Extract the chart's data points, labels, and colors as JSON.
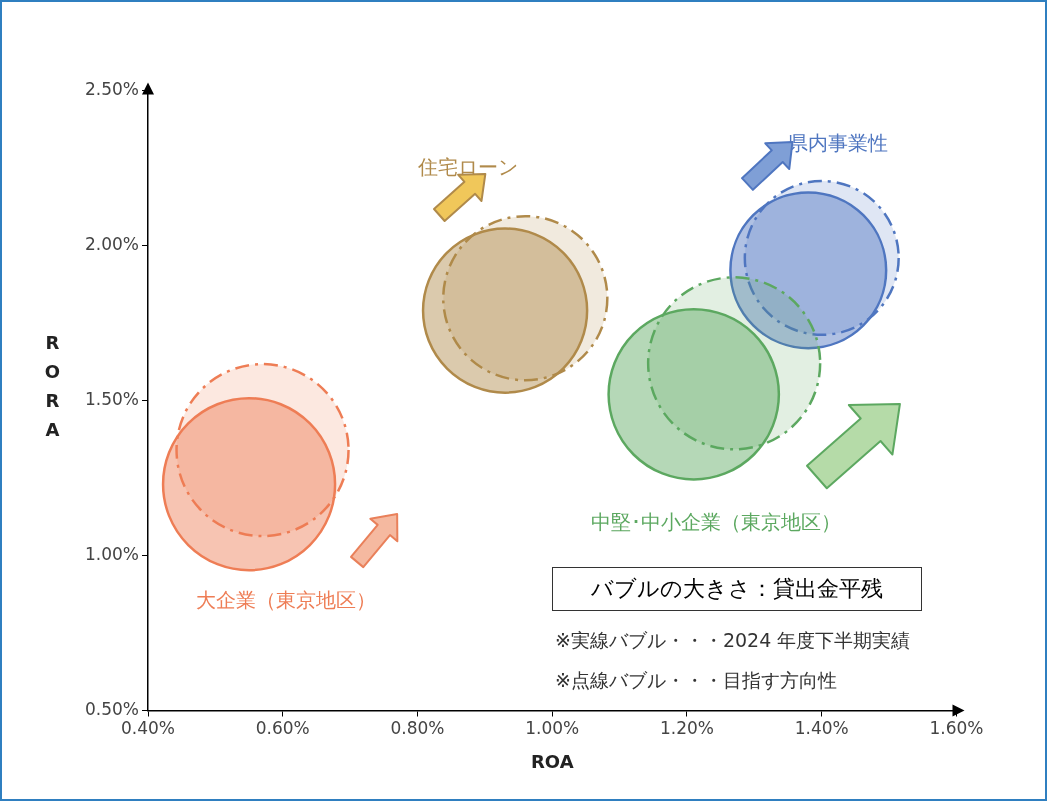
{
  "chart_data": {
    "type": "bubble",
    "xlabel": "ROA",
    "ylabel": "RORA",
    "xlim": [
      0.4,
      1.6
    ],
    "xticks": [
      {
        "value": 0.4,
        "label": "0.40%"
      },
      {
        "value": 0.6,
        "label": "0.60%"
      },
      {
        "value": 0.8,
        "label": "0.80%"
      },
      {
        "value": 1.0,
        "label": "1.00%"
      },
      {
        "value": 1.2,
        "label": "1.20%"
      },
      {
        "value": 1.4,
        "label": "1.40%"
      },
      {
        "value": 1.6,
        "label": "1.60%"
      }
    ],
    "ylim": [
      0.5,
      2.5
    ],
    "yticks": [
      {
        "value": 0.5,
        "label": "0.50%"
      },
      {
        "value": 1.0,
        "label": "1.00%"
      },
      {
        "value": 1.5,
        "label": "1.50%"
      },
      {
        "value": 2.0,
        "label": "2.00%"
      },
      {
        "value": 2.5,
        "label": "2.50%"
      }
    ],
    "grid": false,
    "legend": false,
    "annotations": [
      "バブルの大きさ：貸出金平残",
      "※実線バブル・・・2024 年度下半期実績",
      "※点線バブル・・・目指す方向性"
    ],
    "series": [
      {
        "name": "大企業（東京地区）",
        "color": "#ee7d55",
        "line_style": "solid",
        "x": [
          0.55
        ],
        "values": [
          1.23
        ],
        "sizes": [
          1
        ]
      },
      {
        "color": "#ee7d55",
        "line_style": "dashed",
        "x": [
          0.57
        ],
        "values": [
          1.34
        ],
        "sizes": [
          1
        ]
      },
      {
        "name": "住宅ローン",
        "color": "#b08a4a",
        "line_style": "solid",
        "x": [
          0.93
        ],
        "values": [
          1.79
        ],
        "sizes": [
          0.91
        ]
      },
      {
        "color": "#b08a4a",
        "line_style": "dashed",
        "x": [
          0.96
        ],
        "values": [
          1.83
        ],
        "sizes": [
          0.91
        ]
      },
      {
        "name": "中堅･中小企業（東京地区）",
        "color": "#5ca860",
        "line_style": "solid",
        "x": [
          1.21
        ],
        "values": [
          1.52
        ],
        "sizes": [
          0.98
        ]
      },
      {
        "color": "#5ca860",
        "line_style": "dashed",
        "x": [
          1.27
        ],
        "values": [
          1.62
        ],
        "sizes": [
          1
        ]
      },
      {
        "name": "県内事業性",
        "color": "#4f76c0",
        "line_style": "solid",
        "x": [
          1.38
        ],
        "values": [
          1.92
        ],
        "sizes": [
          0.82
        ]
      },
      {
        "color": "#4f76c0",
        "line_style": "dashed",
        "x": [
          1.4
        ],
        "values": [
          1.96
        ],
        "sizes": [
          0.8
        ]
      }
    ]
  }
}
